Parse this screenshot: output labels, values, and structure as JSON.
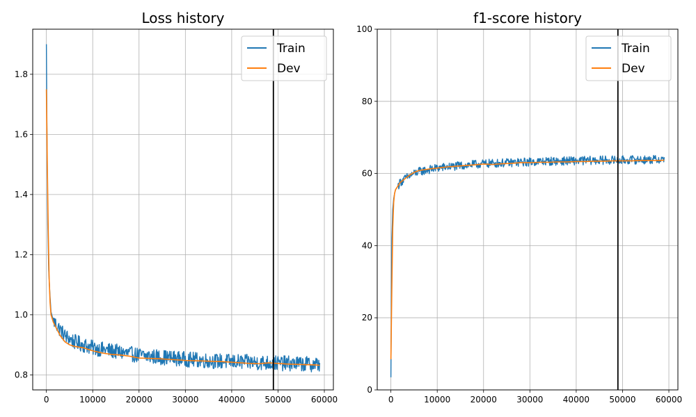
{
  "chart_data": [
    {
      "type": "line",
      "title": "Loss history",
      "xlabel": "",
      "ylabel": "",
      "xlim": [
        -2950,
        61950
      ],
      "ylim": [
        0.75,
        1.95
      ],
      "x_ticks": [
        0,
        10000,
        20000,
        30000,
        40000,
        50000,
        60000
      ],
      "x_tick_labels": [
        "0",
        "10000",
        "20000",
        "30000",
        "40000",
        "50000",
        "60000"
      ],
      "y_ticks": [
        0.8,
        1.0,
        1.2,
        1.4,
        1.6,
        1.8
      ],
      "y_tick_labels": [
        "0.8",
        "1.0",
        "1.2",
        "1.4",
        "1.6",
        "1.8"
      ],
      "grid": true,
      "legend": "top-right",
      "vline_x": 49000,
      "series": [
        {
          "name": "Train",
          "color": "#1f77b4",
          "x": [
            0,
            150,
            300,
            500,
            750,
            1000,
            1500,
            2000,
            2500,
            3000,
            3500,
            4000,
            5000,
            6000,
            7000,
            8000,
            9000,
            10000,
            12000,
            14000,
            16000,
            18000,
            20000,
            22000,
            24000,
            26000,
            28000,
            30000,
            32000,
            34000,
            36000,
            38000,
            40000,
            42000,
            44000,
            46000,
            48000,
            50000,
            52000,
            54000,
            56000,
            58000,
            59000
          ],
          "y": [
            1.9,
            1.55,
            1.3,
            1.15,
            1.07,
            1.01,
            0.98,
            0.97,
            0.96,
            0.95,
            0.94,
            0.93,
            0.92,
            0.91,
            0.905,
            0.9,
            0.895,
            0.89,
            0.885,
            0.88,
            0.875,
            0.87,
            0.865,
            0.862,
            0.86,
            0.857,
            0.855,
            0.852,
            0.85,
            0.848,
            0.846,
            0.845,
            0.844,
            0.843,
            0.842,
            0.841,
            0.84,
            0.839,
            0.838,
            0.837,
            0.836,
            0.835,
            0.835
          ],
          "noise": 0.016
        },
        {
          "name": "Dev",
          "color": "#ff7f0e",
          "x": [
            0,
            200,
            400,
            600,
            800,
            1000,
            1500,
            2000,
            3000,
            4000,
            5000,
            6000,
            8000,
            10000,
            12000,
            14000,
            16000,
            18000,
            20000,
            22000,
            24000,
            26000,
            28000,
            30000,
            32000,
            34000,
            36000,
            38000,
            40000,
            42000,
            44000,
            46000,
            48000,
            50000,
            52000,
            54000,
            56000,
            58000,
            59000
          ],
          "y": [
            1.75,
            1.5,
            1.28,
            1.12,
            1.04,
            1.0,
            0.975,
            0.96,
            0.93,
            0.91,
            0.9,
            0.895,
            0.89,
            0.88,
            0.873,
            0.868,
            0.866,
            0.862,
            0.856,
            0.855,
            0.854,
            0.852,
            0.85,
            0.848,
            0.847,
            0.846,
            0.845,
            0.844,
            0.842,
            0.84,
            0.838,
            0.837,
            0.84,
            0.838,
            0.836,
            0.835,
            0.834,
            0.833,
            0.832
          ]
        }
      ]
    },
    {
      "type": "line",
      "title": "f1-score history",
      "xlabel": "",
      "ylabel": "",
      "xlim": [
        -2950,
        61950
      ],
      "ylim": [
        0,
        100
      ],
      "x_ticks": [
        0,
        10000,
        20000,
        30000,
        40000,
        50000,
        60000
      ],
      "x_tick_labels": [
        "0",
        "10000",
        "20000",
        "30000",
        "40000",
        "50000",
        "60000"
      ],
      "y_ticks": [
        0,
        20,
        40,
        60,
        80,
        100
      ],
      "y_tick_labels": [
        "0",
        "20",
        "40",
        "60",
        "80",
        "100"
      ],
      "grid": true,
      "legend": "top-right",
      "vline_x": 49000,
      "series": [
        {
          "name": "Train",
          "color": "#1f77b4",
          "x": [
            0,
            100,
            200,
            400,
            600,
            800,
            1000,
            1500,
            2000,
            3000,
            4000,
            5000,
            6000,
            8000,
            10000,
            12000,
            14000,
            16000,
            18000,
            20000,
            22000,
            24000,
            26000,
            28000,
            30000,
            32000,
            34000,
            36000,
            38000,
            40000,
            42000,
            44000,
            46000,
            48000,
            50000,
            52000,
            54000,
            56000,
            58000,
            59000
          ],
          "y": [
            3.5,
            25,
            42,
            50,
            53,
            54.5,
            55.5,
            56.5,
            57.5,
            58.5,
            59.3,
            60,
            60.5,
            61,
            61.5,
            61.8,
            62,
            62.3,
            62.5,
            62.7,
            62.8,
            62.9,
            63,
            63.1,
            63.2,
            63.3,
            63.4,
            63.4,
            63.5,
            63.5,
            63.6,
            63.6,
            63.7,
            63.7,
            63.7,
            63.8,
            63.8,
            63.8,
            63.9,
            63.9
          ],
          "noise": 0.75
        },
        {
          "name": "Dev",
          "color": "#ff7f0e",
          "x": [
            0,
            200,
            400,
            600,
            800,
            1000,
            1500,
            2000,
            3000,
            4000,
            5000,
            6000,
            8000,
            10000,
            12000,
            14000,
            16000,
            18000,
            20000,
            22000,
            24000,
            26000,
            28000,
            30000,
            32000,
            34000,
            36000,
            38000,
            40000,
            42000,
            44000,
            46000,
            48000,
            50000,
            52000,
            54000,
            56000,
            58000,
            59000
          ],
          "y": [
            8.5,
            28,
            45,
            52,
            54.5,
            55.5,
            56.5,
            57.5,
            58.5,
            59.5,
            60.3,
            60.8,
            61.2,
            61.5,
            61.8,
            62,
            62.2,
            62.4,
            62.6,
            62.5,
            62.7,
            62.8,
            63,
            63,
            63.1,
            63.1,
            63.2,
            63.2,
            63.3,
            63.3,
            63.4,
            63.4,
            63.5,
            63.5,
            63.5,
            63.6,
            63.6,
            63.6,
            63.7
          ]
        }
      ]
    }
  ]
}
